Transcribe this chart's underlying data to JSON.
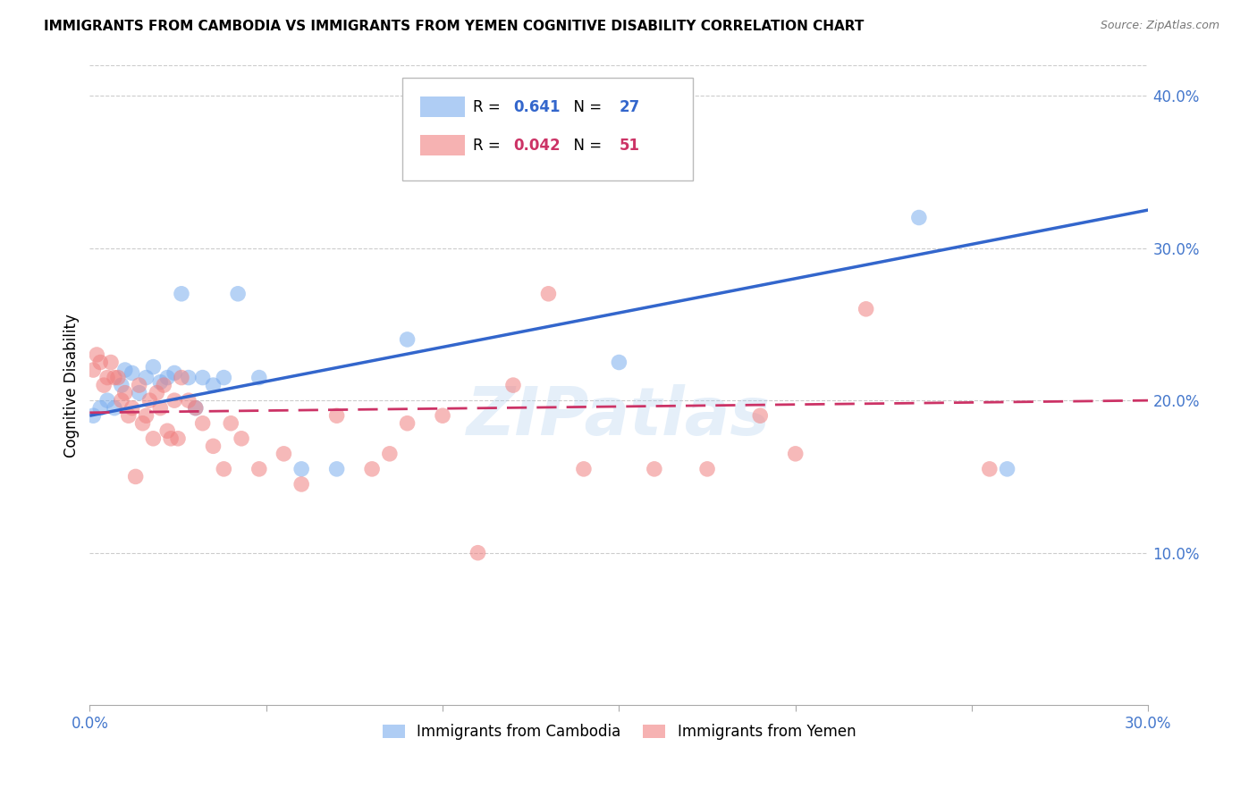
{
  "title": "IMMIGRANTS FROM CAMBODIA VS IMMIGRANTS FROM YEMEN COGNITIVE DISABILITY CORRELATION CHART",
  "source": "Source: ZipAtlas.com",
  "ylabel": "Cognitive Disability",
  "xlim": [
    0.0,
    0.3
  ],
  "ylim": [
    0.0,
    0.42
  ],
  "xticks": [
    0.0,
    0.05,
    0.1,
    0.15,
    0.2,
    0.25,
    0.3
  ],
  "xticklabels": [
    "0.0%",
    "",
    "",
    "",
    "",
    "",
    "30.0%"
  ],
  "yticks_right": [
    0.1,
    0.2,
    0.3,
    0.4
  ],
  "ytick_labels_right": [
    "10.0%",
    "20.0%",
    "30.0%",
    "40.0%"
  ],
  "cambodia_color": "#7aadee",
  "yemen_color": "#f08080",
  "cambodia_R": 0.641,
  "cambodia_N": 27,
  "yemen_R": 0.042,
  "yemen_N": 51,
  "grid_color": "#cccccc",
  "watermark": "ZIPatlas",
  "legend_label_1": "Immigrants from Cambodia",
  "legend_label_2": "Immigrants from Yemen",
  "cambodia_x": [
    0.001,
    0.003,
    0.005,
    0.007,
    0.009,
    0.01,
    0.012,
    0.014,
    0.016,
    0.018,
    0.02,
    0.022,
    0.024,
    0.026,
    0.028,
    0.03,
    0.032,
    0.035,
    0.038,
    0.042,
    0.048,
    0.06,
    0.07,
    0.09,
    0.15,
    0.235,
    0.26
  ],
  "cambodia_y": [
    0.19,
    0.195,
    0.2,
    0.195,
    0.21,
    0.22,
    0.218,
    0.205,
    0.215,
    0.222,
    0.212,
    0.215,
    0.218,
    0.27,
    0.215,
    0.195,
    0.215,
    0.21,
    0.215,
    0.27,
    0.215,
    0.155,
    0.155,
    0.24,
    0.225,
    0.32,
    0.155
  ],
  "yemen_x": [
    0.001,
    0.002,
    0.003,
    0.004,
    0.005,
    0.006,
    0.007,
    0.008,
    0.009,
    0.01,
    0.011,
    0.012,
    0.013,
    0.014,
    0.015,
    0.016,
    0.017,
    0.018,
    0.019,
    0.02,
    0.021,
    0.022,
    0.023,
    0.024,
    0.025,
    0.026,
    0.028,
    0.03,
    0.032,
    0.035,
    0.038,
    0.04,
    0.043,
    0.048,
    0.055,
    0.06,
    0.07,
    0.08,
    0.085,
    0.09,
    0.1,
    0.11,
    0.12,
    0.13,
    0.14,
    0.16,
    0.175,
    0.19,
    0.2,
    0.22,
    0.255
  ],
  "yemen_y": [
    0.22,
    0.23,
    0.225,
    0.21,
    0.215,
    0.225,
    0.215,
    0.215,
    0.2,
    0.205,
    0.19,
    0.195,
    0.15,
    0.21,
    0.185,
    0.19,
    0.2,
    0.175,
    0.205,
    0.195,
    0.21,
    0.18,
    0.175,
    0.2,
    0.175,
    0.215,
    0.2,
    0.195,
    0.185,
    0.17,
    0.155,
    0.185,
    0.175,
    0.155,
    0.165,
    0.145,
    0.19,
    0.155,
    0.165,
    0.185,
    0.19,
    0.1,
    0.21,
    0.27,
    0.155,
    0.155,
    0.155,
    0.19,
    0.165,
    0.26,
    0.155
  ],
  "cambodia_line_x": [
    0.0,
    0.3
  ],
  "cambodia_line_y": [
    0.19,
    0.325
  ],
  "yemen_line_x": [
    0.0,
    0.3
  ],
  "yemen_line_y": [
    0.192,
    0.2
  ]
}
